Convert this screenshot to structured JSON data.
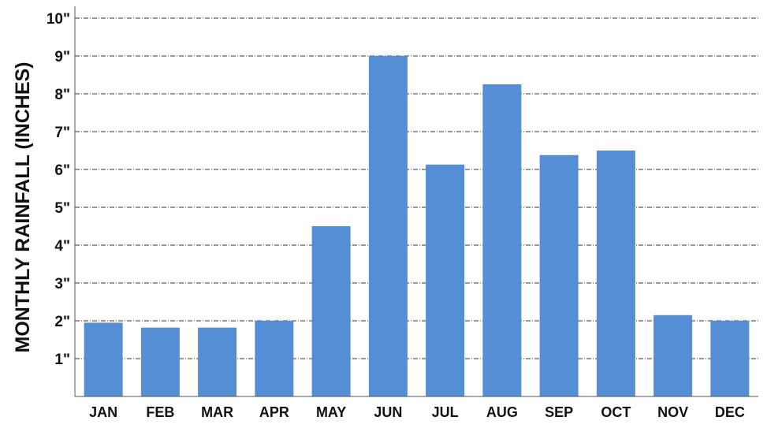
{
  "chart_data": {
    "type": "bar",
    "title": "",
    "xlabel": "",
    "ylabel": "MONTHLY RAINFALL (INCHES)",
    "categories": [
      "JAN",
      "FEB",
      "MAR",
      "APR",
      "MAY",
      "JUN",
      "JUL",
      "AUG",
      "SEP",
      "OCT",
      "NOV",
      "DEC"
    ],
    "values": [
      1.95,
      1.82,
      1.82,
      2.0,
      4.5,
      9.0,
      6.13,
      8.25,
      6.38,
      6.5,
      2.15,
      2.0
    ],
    "ylim": [
      0,
      10
    ],
    "yticks": [
      {
        "value": 1,
        "label": "1\""
      },
      {
        "value": 2,
        "label": "2\""
      },
      {
        "value": 3,
        "label": "3\""
      },
      {
        "value": 4,
        "label": "4\""
      },
      {
        "value": 5,
        "label": "5\""
      },
      {
        "value": 6,
        "label": "6\""
      },
      {
        "value": 7,
        "label": "7\""
      },
      {
        "value": 8,
        "label": "8\""
      },
      {
        "value": 9,
        "label": "9\""
      },
      {
        "value": 10,
        "label": "10\""
      }
    ],
    "grid": true,
    "legend": "none",
    "bar_color": "#558ed5",
    "grid_color": "#333333",
    "axis_color": "#555555"
  }
}
